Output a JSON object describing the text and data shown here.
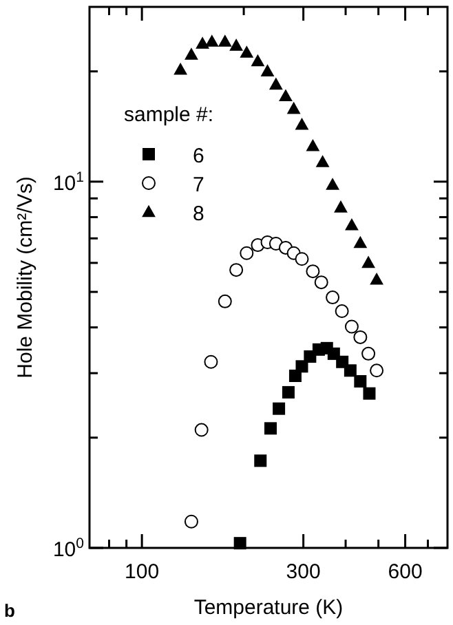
{
  "chart_data": {
    "type": "scatter",
    "xlabel": "Temperature  (K)",
    "ylabel": "Hole Mobility  (cm²/Vs)",
    "legend_title": "sample #:",
    "legend": "left",
    "log": "xy",
    "grid": false,
    "xlim": [
      70,
      800
    ],
    "ylim": [
      1,
      30
    ],
    "xticks": [
      {
        "value": 80,
        "label": null
      },
      {
        "value": 90,
        "label": null
      },
      100,
      {
        "value": 200,
        "label": null
      },
      300,
      {
        "value": 400,
        "label": null
      },
      {
        "value": 500,
        "label": null
      },
      600,
      {
        "value": 700,
        "label": null
      }
    ],
    "yticks": [
      {
        "value": 1,
        "label": "10$^{0}$"
      },
      {
        "value": 2,
        "label": null
      },
      {
        "value": 3,
        "label": null
      },
      {
        "value": 4,
        "label": null
      },
      {
        "value": 5,
        "label": null
      },
      {
        "value": 6,
        "label": null
      },
      {
        "value": 7,
        "label": null
      },
      {
        "value": 8,
        "label": null
      },
      {
        "value": 9,
        "label": null
      },
      {
        "value": 10,
        "label": "10$^{1}$"
      },
      {
        "value": 20,
        "label": null
      }
    ],
    "annotations": [
      "b"
    ],
    "series": [
      {
        "name": "6",
        "color": "#000000",
        "marker": "square",
        "x": [
          195,
          224,
          240,
          254,
          271,
          284,
          297,
          314,
          333,
          352,
          369,
          391,
          413,
          442,
          470
        ],
        "values": [
          1.03,
          1.73,
          2.12,
          2.4,
          2.66,
          2.95,
          3.13,
          3.33,
          3.48,
          3.51,
          3.39,
          3.22,
          3.05,
          2.85,
          2.64
        ]
      },
      {
        "name": "7",
        "color": "#000000",
        "marker": "circle",
        "x": [
          140,
          150,
          160,
          176,
          190,
          204,
          220,
          235,
          249,
          266,
          281,
          297,
          320,
          339,
          366,
          390,
          417,
          442,
          467,
          494
        ],
        "values": [
          1.18,
          2.1,
          3.22,
          4.71,
          5.74,
          6.38,
          6.71,
          6.83,
          6.77,
          6.6,
          6.38,
          6.15,
          5.69,
          5.31,
          4.83,
          4.43,
          4.02,
          3.76,
          3.39,
          3.05
        ]
      },
      {
        "name": "8",
        "color": "#000000",
        "marker": "triangle",
        "x": [
          130,
          140,
          151,
          161,
          176,
          190,
          204,
          220,
          235,
          249,
          266,
          281,
          297,
          320,
          342,
          366,
          387,
          417,
          442,
          467,
          494
        ],
        "values": [
          20.2,
          22.2,
          23.8,
          24.1,
          24.1,
          23.5,
          22.5,
          21.3,
          20.0,
          18.4,
          17.1,
          15.8,
          14.3,
          12.5,
          11.3,
          9.8,
          8.5,
          7.6,
          6.8,
          6.0,
          5.4
        ]
      }
    ]
  }
}
